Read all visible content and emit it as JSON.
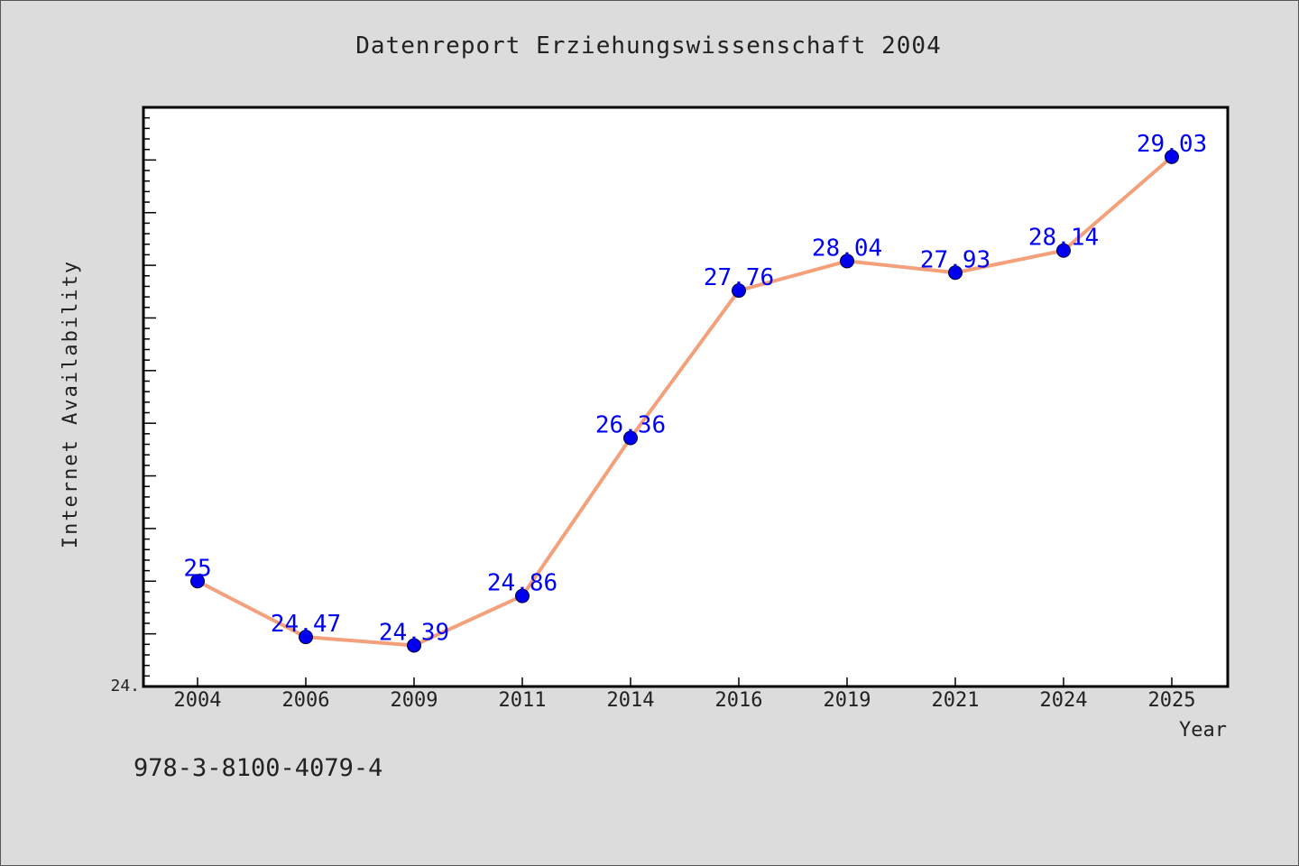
{
  "chart_data": {
    "type": "line",
    "title": "Datenreport Erziehungswissenschaft 2004",
    "xlabel": "Year",
    "ylabel": "Internet Availability",
    "categories": [
      "2004",
      "2006",
      "2009",
      "2011",
      "2014",
      "2016",
      "2019",
      "2021",
      "2024",
      "2025"
    ],
    "series": [
      {
        "values": [
          25,
          24.47,
          24.39,
          24.86,
          26.36,
          27.76,
          28.04,
          27.93,
          28.14,
          29.03
        ],
        "labels": [
          "25",
          "24.47",
          "24.39",
          "24.86",
          "26.36",
          "27.76",
          "28.04",
          "27.93",
          "28.14",
          "29.03"
        ]
      }
    ],
    "ylim": [
      24.0,
      29.5
    ],
    "y_tick_label": "24.",
    "grid": false,
    "line_color": "#f4a07a",
    "marker_color": "#0000ee",
    "label_color": "#0000ee"
  },
  "footer": {
    "isbn": "978-3-8100-4079-4"
  }
}
